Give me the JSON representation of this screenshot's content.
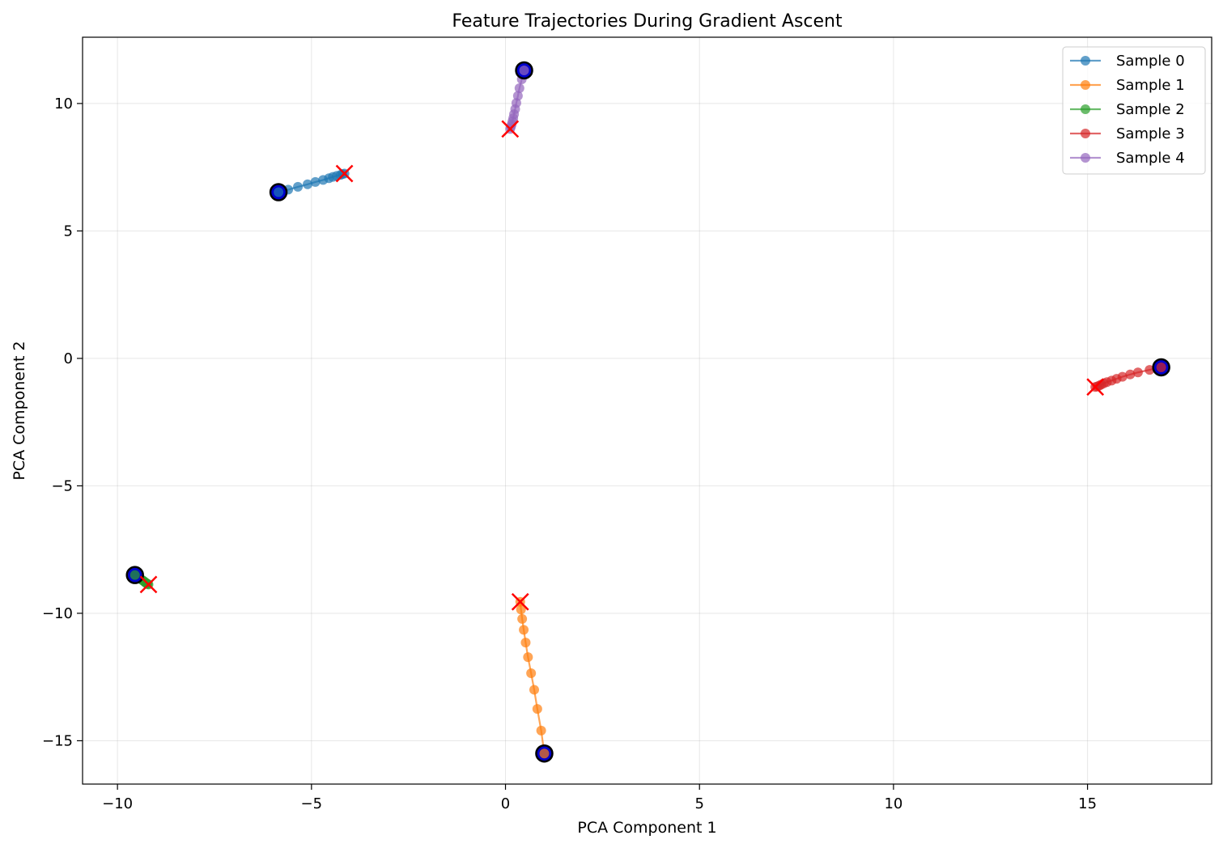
{
  "chart_data": {
    "type": "line",
    "title": "Feature Trajectories During Gradient Ascent",
    "xlabel": "PCA Component 1",
    "ylabel": "PCA Component 2",
    "xlim": [
      -10.9,
      18.2
    ],
    "ylim": [
      -16.7,
      12.6
    ],
    "xticks": [
      -10,
      -5,
      0,
      5,
      10,
      15
    ],
    "yticks": [
      -15,
      -10,
      -5,
      0,
      5,
      10
    ],
    "xtick_labels": [
      "−10",
      "−5",
      "0",
      "5",
      "10",
      "15"
    ],
    "ytick_labels": [
      "−15",
      "−10",
      "−5",
      "0",
      "5",
      "10"
    ],
    "grid": true,
    "legend_position": "top-right",
    "start_marker": {
      "fill": "#0000cc",
      "edge": "#000000"
    },
    "end_marker": {
      "color": "#ff0000",
      "shape": "x"
    },
    "series": [
      {
        "name": "Sample 0",
        "color": "#1f77b4",
        "x": [
          -5.85,
          -5.6,
          -5.35,
          -5.1,
          -4.9,
          -4.7,
          -4.55,
          -4.45,
          -4.35,
          -4.25,
          -4.2,
          -4.15
        ],
        "y": [
          6.52,
          6.62,
          6.73,
          6.83,
          6.92,
          7.0,
          7.07,
          7.12,
          7.16,
          7.2,
          7.23,
          7.25
        ]
      },
      {
        "name": "Sample 1",
        "color": "#ff7f0e",
        "x": [
          1.0,
          0.92,
          0.82,
          0.74,
          0.66,
          0.58,
          0.52,
          0.47,
          0.43,
          0.4,
          0.38
        ],
        "y": [
          -15.5,
          -14.6,
          -13.75,
          -13.0,
          -12.35,
          -11.72,
          -11.15,
          -10.65,
          -10.22,
          -9.85,
          -9.55
        ]
      },
      {
        "name": "Sample 2",
        "color": "#2ca02c",
        "x": [
          -9.55,
          -9.5,
          -9.45,
          -9.42,
          -9.38,
          -9.35,
          -9.32,
          -9.3,
          -9.28,
          -9.26,
          -9.24,
          -9.22,
          -9.2
        ],
        "y": [
          -8.5,
          -8.55,
          -8.6,
          -8.64,
          -8.68,
          -8.71,
          -8.74,
          -8.77,
          -8.79,
          -8.81,
          -8.83,
          -8.85,
          -8.87
        ]
      },
      {
        "name": "Sample 3",
        "color": "#d62728",
        "x": [
          16.9,
          16.6,
          16.3,
          16.1,
          15.9,
          15.75,
          15.62,
          15.5,
          15.42,
          15.35,
          15.3,
          15.25,
          15.2
        ],
        "y": [
          -0.35,
          -0.45,
          -0.55,
          -0.63,
          -0.72,
          -0.8,
          -0.87,
          -0.93,
          -0.98,
          -1.03,
          -1.07,
          -1.1,
          -1.12
        ]
      },
      {
        "name": "Sample 4",
        "color": "#9467bd",
        "x": [
          0.48,
          0.42,
          0.36,
          0.32,
          0.28,
          0.25,
          0.22,
          0.2,
          0.18,
          0.16,
          0.14,
          0.12
        ],
        "y": [
          11.3,
          10.95,
          10.6,
          10.3,
          10.02,
          9.78,
          9.58,
          9.42,
          9.3,
          9.18,
          9.08,
          9.0
        ]
      }
    ]
  }
}
